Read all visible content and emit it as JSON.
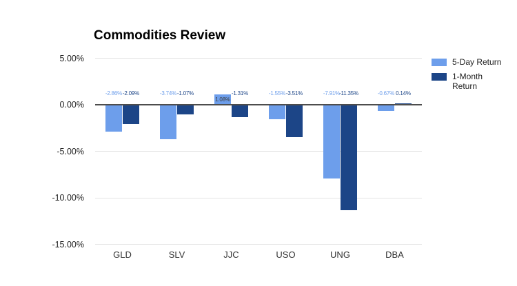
{
  "title": "Commodities Review",
  "colors": {
    "five_day": "#6d9eeb",
    "one_month": "#1c4587",
    "grid_line": "#e3e3e3",
    "zero_line": "#4d4d4d",
    "axis_text": "#222222",
    "inside_bar_label": "#3d3d3d",
    "background": "#ffffff"
  },
  "legend": {
    "items": [
      {
        "label": "5-Day Return",
        "color": "#6d9eeb"
      },
      {
        "label": "1-Month Return",
        "color": "#1c4587"
      }
    ]
  },
  "chart_data": {
    "type": "bar",
    "title": "Commodities Review",
    "categories": [
      "GLD",
      "SLV",
      "JJC",
      "USO",
      "UNG",
      "DBA"
    ],
    "series": [
      {
        "name": "5-Day Return",
        "color": "#6d9eeb",
        "values": [
          -2.86,
          -3.74,
          1.08,
          -1.55,
          -7.91,
          -0.67
        ],
        "labels": [
          "-2.86%",
          "-3.74%",
          "1.08%",
          "-1.55%",
          "-7.91%",
          "-0.67%"
        ]
      },
      {
        "name": "1-Month Return",
        "color": "#1c4587",
        "values": [
          -2.09,
          -1.07,
          -1.31,
          -3.51,
          -11.35,
          0.14
        ],
        "labels": [
          "-2.09%",
          "-1.07%",
          "-1.31%",
          "-3.51%",
          "-11.35%",
          "0.14%"
        ]
      }
    ],
    "xlabel": "",
    "ylabel": "",
    "ylim": [
      -15,
      5
    ],
    "yticks": [
      5,
      0,
      -5,
      -10,
      -15
    ],
    "ytick_labels": [
      "5.00%",
      "0.00%",
      "-5.00%",
      "-10.00%",
      "-15.00%"
    ],
    "grid": true,
    "legend_position": "right"
  }
}
